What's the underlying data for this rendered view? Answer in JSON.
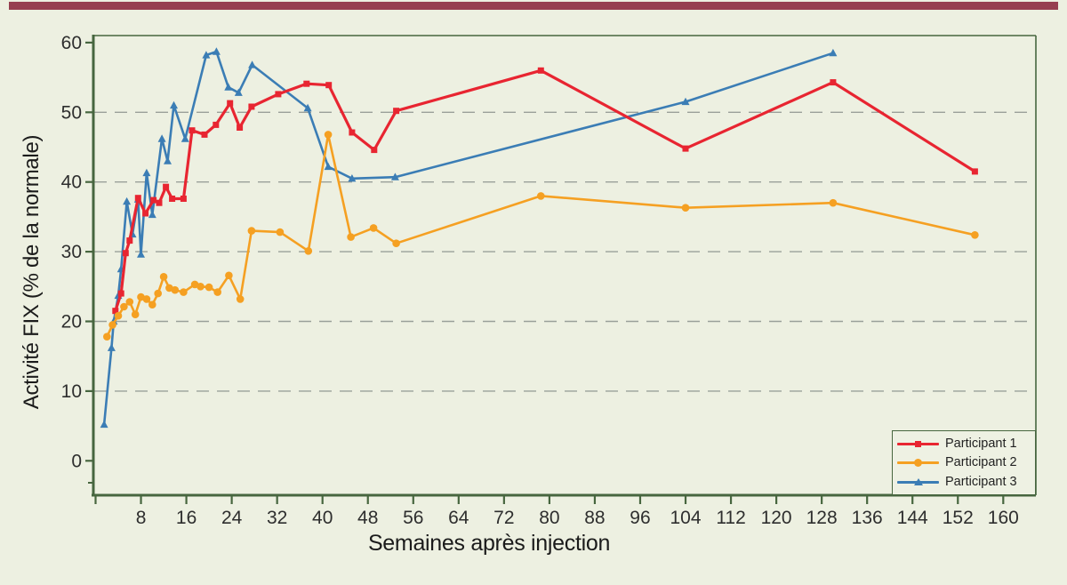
{
  "figure": {
    "background_color": "#edf0e1",
    "accent_bar_color": "#963f50",
    "frame_color": "#47663f",
    "gridline_color": "#9aa09a",
    "text_color": "#2e2e2e"
  },
  "chart_data": {
    "type": "line",
    "title": "",
    "xlabel": "Semaines après injection",
    "ylabel": "Activité FIX (% de la normale)",
    "x_ticks": [
      8,
      16,
      24,
      32,
      40,
      48,
      56,
      64,
      72,
      80,
      88,
      96,
      104,
      112,
      120,
      128,
      136,
      144,
      152,
      160
    ],
    "y_ticks": [
      0,
      10,
      20,
      30,
      40,
      50,
      60
    ],
    "xlim": [
      0,
      166
    ],
    "ylim": [
      0,
      63
    ],
    "grid": "horizontal dashed lines at 10, 20, 30, 40, 50",
    "legend_position": "bottom-right",
    "series": [
      {
        "name": "Participant 1",
        "color": "#e82531",
        "marker": "square",
        "points": [
          [
            3.5,
            21.5
          ],
          [
            4.5,
            24.0
          ],
          [
            5.3,
            29.8
          ],
          [
            6.0,
            31.6
          ],
          [
            7.5,
            37.7
          ],
          [
            8.8,
            35.5
          ],
          [
            10.2,
            37.4
          ],
          [
            11.2,
            37.0
          ],
          [
            12.4,
            39.3
          ],
          [
            13.5,
            37.6
          ],
          [
            15.5,
            37.6
          ],
          [
            17.0,
            47.4
          ],
          [
            19.2,
            46.8
          ],
          [
            21.2,
            48.2
          ],
          [
            23.7,
            51.3
          ],
          [
            25.4,
            47.8
          ],
          [
            27.5,
            50.8
          ],
          [
            32.2,
            52.6
          ],
          [
            37.2,
            54.1
          ],
          [
            41.1,
            53.9
          ],
          [
            45.2,
            47.1
          ],
          [
            49.1,
            44.6
          ],
          [
            53.0,
            50.2
          ],
          [
            78.5,
            56.0
          ],
          [
            104.0,
            44.8
          ],
          [
            130.0,
            54.3
          ],
          [
            155.0,
            41.5
          ]
        ]
      },
      {
        "name": "Participant 2",
        "color": "#f5a022",
        "marker": "circle",
        "points": [
          [
            2.0,
            17.8
          ],
          [
            3.0,
            19.5
          ],
          [
            4.0,
            20.8
          ],
          [
            5.0,
            22.1
          ],
          [
            6.0,
            22.8
          ],
          [
            7.0,
            21.0
          ],
          [
            8.0,
            23.5
          ],
          [
            9.0,
            23.2
          ],
          [
            10.0,
            22.4
          ],
          [
            11.0,
            24.0
          ],
          [
            12.0,
            26.4
          ],
          [
            13.0,
            24.8
          ],
          [
            14.0,
            24.5
          ],
          [
            15.5,
            24.2
          ],
          [
            17.5,
            25.3
          ],
          [
            18.5,
            25.0
          ],
          [
            20.0,
            24.9
          ],
          [
            21.5,
            24.2
          ],
          [
            23.5,
            26.6
          ],
          [
            25.5,
            23.2
          ],
          [
            27.5,
            33.0
          ],
          [
            32.5,
            32.8
          ],
          [
            37.5,
            30.1
          ],
          [
            41.0,
            46.8
          ],
          [
            45.0,
            32.1
          ],
          [
            49.0,
            33.4
          ],
          [
            53.0,
            31.2
          ],
          [
            78.5,
            38.0
          ],
          [
            104.0,
            36.3
          ],
          [
            130.0,
            37.0
          ],
          [
            155.0,
            32.4
          ]
        ]
      },
      {
        "name": "Participant 3",
        "color": "#3b7db5",
        "marker": "triangle",
        "points": [
          [
            1.5,
            5.2
          ],
          [
            2.8,
            16.2
          ],
          [
            3.2,
            20.0
          ],
          [
            4.0,
            23.7
          ],
          [
            4.5,
            27.5
          ],
          [
            5.5,
            37.2
          ],
          [
            6.5,
            32.5
          ],
          [
            7.5,
            37.5
          ],
          [
            8.0,
            29.6
          ],
          [
            9.0,
            41.3
          ],
          [
            10.0,
            35.3
          ],
          [
            11.7,
            46.2
          ],
          [
            12.7,
            43.0
          ],
          [
            13.8,
            51.0
          ],
          [
            15.8,
            46.2
          ],
          [
            19.5,
            58.2
          ],
          [
            21.3,
            58.7
          ],
          [
            23.4,
            53.6
          ],
          [
            25.2,
            52.8
          ],
          [
            27.6,
            56.8
          ],
          [
            37.4,
            50.6
          ],
          [
            41.0,
            42.2
          ],
          [
            45.2,
            40.5
          ],
          [
            52.8,
            40.7
          ],
          [
            104.0,
            51.5
          ],
          [
            130.0,
            58.5
          ]
        ]
      }
    ]
  },
  "legend": {
    "entries": [
      "Participant 1",
      "Participant 2",
      "Participant 3"
    ]
  }
}
